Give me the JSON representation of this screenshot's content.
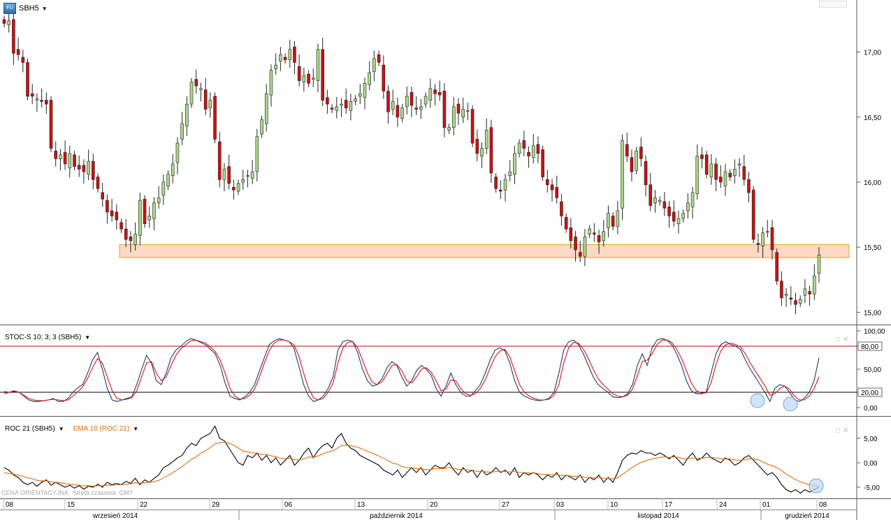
{
  "symbol": {
    "icon": "fu-badge-icon",
    "badge_text": "FU",
    "name": "SBH5"
  },
  "panels": {
    "price": {
      "y_ticks": [
        "17,00",
        "16,50",
        "16,00",
        "15,50",
        "15,00"
      ]
    },
    "stoch": {
      "label": "STOC-S 10; 3; 3 (SBH5)",
      "y_ticks": [
        "100,00",
        "80,00",
        "50,00",
        "20,00",
        "0,00"
      ],
      "levels": [
        80,
        20
      ],
      "level_labels": [
        "80,00",
        "20,00"
      ]
    },
    "roc": {
      "label_1": "ROC 21 (SBH5)",
      "label_2": "EMA 10 (ROC 21)",
      "y_ticks": [
        "5,00",
        "0,00",
        "-5,00"
      ]
    }
  },
  "footer": {
    "cena": "CENA ORIENTACYJNA",
    "strefa": "Strefa czasowa: GMT"
  },
  "x_axis": {
    "day_ticks": [
      "08",
      "15",
      "22",
      "29",
      "06",
      "13",
      "20",
      "27",
      "03",
      "10",
      "17",
      "24",
      "01",
      "08"
    ],
    "months": [
      "wrzesień 2014",
      "październik 2014",
      "listopad 2014",
      "grudzień 2014"
    ]
  },
  "chart_data": [
    {
      "type": "candlestick",
      "series": "SBH5",
      "ylim": [
        14.9,
        17.4
      ],
      "support_zone": [
        15.42,
        15.52
      ],
      "close": [
        17.22,
        17.24,
        16.99,
        16.98,
        16.92,
        16.66,
        16.66,
        16.64,
        16.62,
        16.6,
        16.26,
        16.18,
        16.21,
        16.14,
        16.22,
        16.12,
        16.1,
        16.08,
        16.16,
        16.02,
        15.95,
        15.87,
        15.77,
        15.74,
        15.71,
        15.64,
        15.56,
        15.55,
        15.6,
        15.86,
        15.68,
        15.74,
        15.84,
        15.88,
        16.0,
        16.06,
        16.14,
        16.3,
        16.45,
        16.6,
        16.77,
        16.74,
        16.72,
        16.56,
        16.63,
        16.33,
        16.02,
        16.1,
        15.99,
        15.94,
        15.99,
        16.02,
        16.05,
        16.08,
        16.35,
        16.48,
        16.68,
        16.86,
        16.9,
        16.98,
        16.94,
        17.02,
        16.92,
        16.78,
        16.82,
        16.76,
        16.8,
        17.02,
        16.63,
        16.6,
        16.56,
        16.58,
        16.6,
        16.57,
        16.62,
        16.64,
        16.68,
        16.76,
        16.84,
        16.95,
        16.92,
        16.7,
        16.54,
        16.62,
        16.5,
        16.57,
        16.66,
        16.59,
        16.56,
        16.58,
        16.66,
        16.72,
        16.68,
        16.67,
        16.42,
        16.42,
        16.58,
        16.53,
        16.56,
        16.55,
        16.3,
        16.22,
        16.26,
        16.4,
        16.07,
        15.95,
        15.93,
        16.02,
        16.08,
        16.22,
        16.3,
        16.26,
        16.2,
        16.28,
        16.22,
        16.04,
        15.98,
        15.94,
        15.88,
        15.74,
        15.64,
        15.55,
        15.48,
        15.43,
        15.58,
        15.64,
        15.6,
        15.54,
        15.62,
        15.76,
        15.66,
        15.78,
        16.32,
        16.2,
        16.08,
        16.24,
        16.18,
        15.98,
        15.82,
        15.88,
        15.86,
        15.8,
        15.74,
        15.7,
        15.72,
        15.76,
        15.84,
        15.92,
        16.2,
        16.18,
        16.06,
        16.14,
        16.02,
        16.0,
        16.08,
        16.04,
        16.1,
        16.14,
        16.02,
        15.92,
        15.56,
        15.52,
        15.61,
        15.62,
        15.48,
        15.24,
        15.11,
        15.14,
        15.1,
        15.06,
        15.1,
        15.18,
        15.14,
        15.28,
        15.44
      ]
    },
    {
      "type": "line",
      "series": [
        {
          "name": "%K",
          "values": [
            21,
            20,
            22,
            20,
            15,
            10,
            8,
            8,
            9,
            10,
            12,
            8,
            8,
            12,
            20,
            26,
            30,
            45,
            62,
            72,
            50,
            25,
            10,
            8,
            10,
            12,
            14,
            30,
            50,
            68,
            58,
            35,
            30,
            45,
            65,
            75,
            80,
            86,
            90,
            88,
            85,
            82,
            76,
            70,
            55,
            32,
            15,
            12,
            10,
            14,
            20,
            30,
            48,
            65,
            82,
            87,
            90,
            88,
            86,
            78,
            55,
            30,
            15,
            8,
            10,
            15,
            25,
            40,
            75,
            86,
            88,
            86,
            72,
            50,
            35,
            28,
            30,
            38,
            52,
            60,
            55,
            40,
            28,
            35,
            48,
            55,
            50,
            42,
            25,
            15,
            28,
            45,
            30,
            20,
            15,
            15,
            22,
            30,
            45,
            62,
            75,
            78,
            74,
            58,
            35,
            20,
            15,
            12,
            10,
            9,
            10,
            12,
            20,
            45,
            75,
            86,
            88,
            82,
            70,
            55,
            40,
            30,
            25,
            20,
            14,
            13,
            14,
            18,
            30,
            55,
            70,
            55,
            78,
            88,
            90,
            88,
            82,
            70,
            55,
            35,
            22,
            18,
            18,
            20,
            45,
            70,
            82,
            86,
            82,
            80,
            76,
            62,
            50,
            40,
            30,
            20,
            8,
            25,
            30,
            28,
            20,
            10,
            8,
            12,
            20,
            35,
            65
          ]
        },
        {
          "name": "%D",
          "values": [
            18,
            20,
            21,
            20,
            16,
            12,
            10,
            9,
            9,
            10,
            11,
            10,
            9,
            10,
            15,
            21,
            27,
            38,
            52,
            64,
            58,
            40,
            22,
            12,
            10,
            11,
            13,
            22,
            40,
            58,
            60,
            45,
            35,
            40,
            55,
            68,
            77,
            82,
            87,
            88,
            86,
            84,
            79,
            73,
            62,
            45,
            25,
            15,
            11,
            12,
            16,
            24,
            40,
            58,
            74,
            84,
            88,
            88,
            86,
            82,
            68,
            45,
            25,
            13,
            10,
            12,
            20,
            32,
            58,
            78,
            85,
            86,
            78,
            62,
            45,
            33,
            30,
            34,
            44,
            55,
            56,
            48,
            35,
            32,
            40,
            50,
            52,
            46,
            35,
            22,
            24,
            36,
            35,
            25,
            18,
            16,
            18,
            25,
            36,
            52,
            66,
            74,
            76,
            66,
            48,
            30,
            20,
            15,
            12,
            10,
            10,
            11,
            16,
            30,
            58,
            78,
            85,
            84,
            76,
            64,
            50,
            38,
            30,
            24,
            18,
            15,
            14,
            16,
            24,
            42,
            60,
            62,
            70,
            82,
            88,
            88,
            85,
            76,
            64,
            48,
            32,
            22,
            19,
            19,
            32,
            56,
            74,
            82,
            84,
            82,
            79,
            70,
            58,
            48,
            38,
            28,
            16,
            18,
            25,
            28,
            24,
            15,
            10,
            10,
            15,
            25,
            40
          ]
        }
      ]
    },
    {
      "type": "line",
      "series": [
        {
          "name": "ROC 21",
          "values": [
            -1.0,
            -1.5,
            -2.5,
            -3.0,
            -4.0,
            -4.5,
            -4.0,
            -4.8,
            -4.0,
            -3.5,
            -4.6,
            -4.0,
            -4.5,
            -5.0,
            -4.6,
            -5.2,
            -4.7,
            -5.4,
            -4.8,
            -5.0,
            -4.4,
            -5.0,
            -4.0,
            -4.5,
            -4.2,
            -4.5,
            -3.8,
            -4.2,
            -3.2,
            -4.5,
            -3.5,
            -4.0,
            -3.2,
            -2.5,
            -1.0,
            -0.5,
            0.2,
            1.0,
            1.5,
            3.0,
            4.0,
            3.5,
            5.0,
            5.5,
            6.0,
            7.5,
            5.0,
            4.5,
            3.0,
            1.5,
            0.0,
            -0.5,
            1.5,
            1.0,
            2.0,
            0.5,
            1.5,
            0.0,
            1.0,
            -0.5,
            0.5,
            1.5,
            -0.5,
            0.5,
            2.0,
            3.0,
            1.0,
            2.5,
            3.5,
            4.0,
            3.0,
            5.0,
            6.0,
            4.0,
            3.0,
            2.5,
            1.5,
            1.0,
            0.5,
            0.0,
            -0.5,
            -1.5,
            -2.0,
            -2.5,
            -1.5,
            -3.0,
            -2.0,
            -1.0,
            -2.0,
            -1.0,
            -2.5,
            -1.5,
            -0.5,
            -1.0,
            -1.0,
            0.0,
            -1.5,
            -2.5,
            -1.0,
            -2.0,
            -1.5,
            -3.0,
            -1.5,
            -2.5,
            -2.0,
            -1.0,
            -2.0,
            -1.5,
            -2.5,
            -1.0,
            -3.0,
            -2.0,
            -2.5,
            -2.0,
            -2.5,
            -3.5,
            -2.5,
            -3.0,
            -2.0,
            -3.5,
            -2.5,
            -3.0,
            -3.5,
            -2.5,
            -4.0,
            -3.0,
            -3.5,
            -2.5,
            -4.0,
            -3.0,
            -4.0,
            -2.0,
            0.5,
            1.5,
            2.0,
            1.8,
            2.5,
            2.0,
            2.0,
            1.5,
            2.0,
            1.5,
            0.8,
            1.5,
            0.5,
            -0.5,
            1.0,
            2.0,
            0.5,
            1.0,
            2.0,
            1.0,
            0.5,
            0.0,
            1.0,
            0.5,
            -0.5,
            0.0,
            1.0,
            1.5,
            0.5,
            -0.5,
            -1.5,
            -2.5,
            -2.0,
            -3.0,
            -4.5,
            -5.5,
            -6.0,
            -5.5,
            -6.2,
            -5.5,
            -6.0,
            -5.5,
            -5.0
          ]
        },
        {
          "name": "EMA 10",
          "values": [
            -2.0,
            -2.2,
            -2.3,
            -2.5,
            -2.8,
            -3.1,
            -3.3,
            -3.6,
            -3.7,
            -3.7,
            -3.9,
            -4.0,
            -4.1,
            -4.3,
            -4.4,
            -4.5,
            -4.6,
            -4.7,
            -4.7,
            -4.8,
            -4.7,
            -4.7,
            -4.6,
            -4.6,
            -4.5,
            -4.5,
            -4.4,
            -4.3,
            -4.1,
            -4.2,
            -4.1,
            -4.0,
            -3.9,
            -3.6,
            -3.1,
            -2.6,
            -2.0,
            -1.4,
            -0.8,
            0.0,
            0.7,
            1.2,
            1.9,
            2.5,
            3.1,
            3.9,
            4.1,
            4.2,
            4.0,
            3.6,
            3.0,
            2.4,
            2.2,
            2.0,
            2.0,
            1.7,
            1.7,
            1.4,
            1.3,
            0.9,
            0.8,
            0.9,
            0.6,
            0.6,
            0.8,
            1.2,
            1.1,
            1.4,
            1.8,
            2.2,
            2.4,
            2.9,
            3.5,
            3.6,
            3.5,
            3.3,
            3.0,
            2.6,
            2.2,
            1.8,
            1.4,
            0.9,
            0.4,
            -0.1,
            -0.3,
            -0.8,
            -1.0,
            -1.0,
            -1.2,
            -1.2,
            -1.4,
            -1.4,
            -1.2,
            -1.2,
            -1.2,
            -1.0,
            -1.1,
            -1.4,
            -1.3,
            -1.5,
            -1.5,
            -1.8,
            -1.7,
            -1.9,
            -1.9,
            -1.8,
            -1.8,
            -1.8,
            -1.9,
            -1.7,
            -2.0,
            -2.0,
            -2.1,
            -2.1,
            -2.2,
            -2.4,
            -2.4,
            -2.5,
            -2.4,
            -2.6,
            -2.6,
            -2.7,
            -2.8,
            -2.7,
            -3.0,
            -3.0,
            -3.1,
            -3.0,
            -3.2,
            -3.2,
            -3.3,
            -3.1,
            -2.4,
            -1.7,
            -1.0,
            -0.5,
            0.1,
            0.4,
            0.7,
            0.9,
            1.1,
            1.2,
            1.1,
            1.2,
            1.1,
            0.8,
            0.8,
            1.0,
            0.9,
            0.9,
            1.1,
            1.1,
            1.0,
            0.8,
            0.8,
            0.8,
            0.6,
            0.5,
            0.6,
            0.8,
            0.8,
            0.6,
            0.2,
            -0.3,
            -0.6,
            -1.0,
            -1.6,
            -2.3,
            -2.9,
            -3.4,
            -3.9,
            -4.2,
            -4.5,
            -4.7,
            -4.8
          ]
        }
      ]
    }
  ]
}
